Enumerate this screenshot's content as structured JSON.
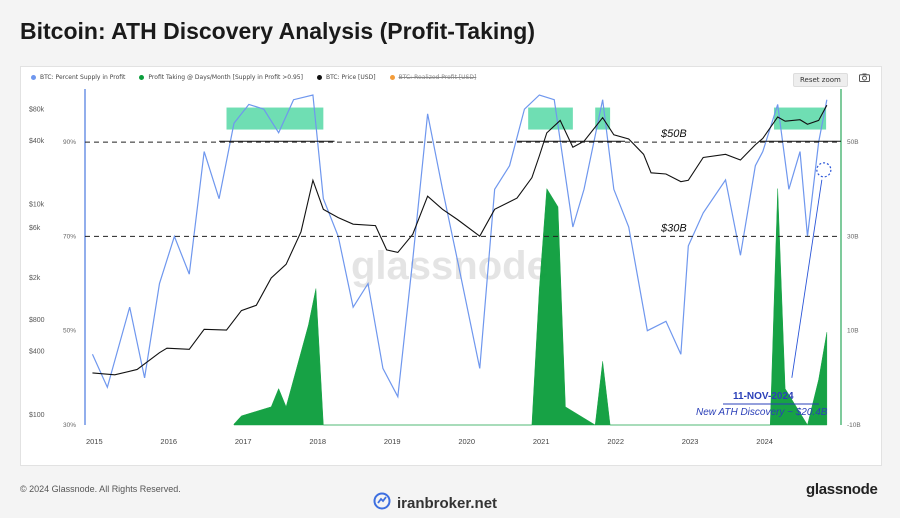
{
  "title": "Bitcoin: ATH Discovery Analysis (Profit-Taking)",
  "legend": [
    {
      "label": "BTC: Percent Supply in Profit",
      "color": "#6f97ee",
      "struck": false
    },
    {
      "label": "Profit Taking @ Days/Month [Supply in Profit >0.95]",
      "color": "#0b9e3c",
      "struck": false
    },
    {
      "label": "BTC: Price [USD]",
      "color": "#111111",
      "struck": false
    },
    {
      "label": "BTC: Realized Profit [USD]",
      "color": "#f39c3a",
      "struck": true
    }
  ],
  "toolbar": {
    "reset_zoom": "Reset zoom",
    "camera_icon": "camera-icon"
  },
  "footer": {
    "copyright": "© 2024 Glassnode. All Rights Reserved.",
    "brand": "glassnode",
    "watermark_brand": "iranbroker.net"
  },
  "chart_data": {
    "type": "line",
    "x_ticks": [
      "2015",
      "2016",
      "2017",
      "2018",
      "2019",
      "2020",
      "2021",
      "2022",
      "2023",
      "2024"
    ],
    "left_price_ticks": [
      "$80k",
      "$40k",
      "$10k",
      "$6k",
      "$2k",
      "$800",
      "$400",
      "$100"
    ],
    "left_percent_ticks": [
      "90%",
      "70%",
      "50%",
      "30%"
    ],
    "right_ticks": [
      "50B",
      "30B",
      "10B",
      "-10B"
    ],
    "watermark": "glassnode",
    "annotations": {
      "line_50b": "$50B",
      "line_30b": "$30B",
      "event_date": "11-NOV-2024",
      "event_text": "New ATH Discovery ~ $20.4B"
    },
    "price_usd": [
      [
        2015.0,
        250
      ],
      [
        2015.3,
        240
      ],
      [
        2015.6,
        270
      ],
      [
        2015.9,
        390
      ],
      [
        2016.0,
        430
      ],
      [
        2016.3,
        420
      ],
      [
        2016.5,
        650
      ],
      [
        2016.8,
        640
      ],
      [
        2017.0,
        980
      ],
      [
        2017.2,
        1100
      ],
      [
        2017.4,
        2000
      ],
      [
        2017.6,
        2700
      ],
      [
        2017.8,
        5500
      ],
      [
        2017.96,
        17000
      ],
      [
        2018.1,
        9000
      ],
      [
        2018.3,
        7500
      ],
      [
        2018.5,
        6500
      ],
      [
        2018.8,
        6300
      ],
      [
        2018.95,
        3700
      ],
      [
        2019.1,
        3500
      ],
      [
        2019.3,
        5200
      ],
      [
        2019.5,
        12000
      ],
      [
        2019.7,
        9000
      ],
      [
        2019.9,
        7200
      ],
      [
        2020.2,
        5000
      ],
      [
        2020.4,
        9000
      ],
      [
        2020.7,
        11500
      ],
      [
        2020.9,
        18000
      ],
      [
        2021.0,
        29000
      ],
      [
        2021.1,
        48000
      ],
      [
        2021.28,
        63000
      ],
      [
        2021.45,
        35000
      ],
      [
        2021.6,
        40000
      ],
      [
        2021.85,
        67000
      ],
      [
        2022.0,
        46000
      ],
      [
        2022.2,
        42000
      ],
      [
        2022.4,
        30000
      ],
      [
        2022.5,
        20000
      ],
      [
        2022.7,
        19500
      ],
      [
        2022.9,
        16500
      ],
      [
        2023.0,
        17000
      ],
      [
        2023.2,
        28000
      ],
      [
        2023.5,
        30000
      ],
      [
        2023.7,
        26500
      ],
      [
        2023.9,
        37000
      ],
      [
        2024.0,
        42500
      ],
      [
        2024.2,
        68000
      ],
      [
        2024.3,
        62000
      ],
      [
        2024.5,
        64000
      ],
      [
        2024.6,
        58000
      ],
      [
        2024.75,
        63000
      ],
      [
        2024.86,
        88000
      ]
    ],
    "percent_supply_in_profit": [
      [
        2015.0,
        45
      ],
      [
        2015.2,
        38
      ],
      [
        2015.5,
        55
      ],
      [
        2015.7,
        40
      ],
      [
        2015.9,
        60
      ],
      [
        2016.1,
        70
      ],
      [
        2016.3,
        62
      ],
      [
        2016.5,
        88
      ],
      [
        2016.7,
        78
      ],
      [
        2016.9,
        94
      ],
      [
        2017.1,
        98
      ],
      [
        2017.3,
        97
      ],
      [
        2017.5,
        92
      ],
      [
        2017.7,
        99
      ],
      [
        2017.96,
        100
      ],
      [
        2018.1,
        78
      ],
      [
        2018.3,
        70
      ],
      [
        2018.5,
        55
      ],
      [
        2018.7,
        60
      ],
      [
        2018.9,
        42
      ],
      [
        2019.1,
        36
      ],
      [
        2019.3,
        65
      ],
      [
        2019.5,
        96
      ],
      [
        2019.7,
        80
      ],
      [
        2019.9,
        65
      ],
      [
        2020.2,
        42
      ],
      [
        2020.4,
        80
      ],
      [
        2020.6,
        85
      ],
      [
        2020.8,
        97
      ],
      [
        2021.0,
        100
      ],
      [
        2021.2,
        99
      ],
      [
        2021.45,
        72
      ],
      [
        2021.6,
        80
      ],
      [
        2021.85,
        99
      ],
      [
        2022.0,
        80
      ],
      [
        2022.2,
        72
      ],
      [
        2022.45,
        50
      ],
      [
        2022.7,
        52
      ],
      [
        2022.9,
        45
      ],
      [
        2023.0,
        68
      ],
      [
        2023.2,
        75
      ],
      [
        2023.5,
        82
      ],
      [
        2023.7,
        66
      ],
      [
        2023.9,
        85
      ],
      [
        2024.0,
        88
      ],
      [
        2024.2,
        98
      ],
      [
        2024.35,
        80
      ],
      [
        2024.5,
        88
      ],
      [
        2024.6,
        70
      ],
      [
        2024.75,
        90
      ],
      [
        2024.86,
        99
      ]
    ],
    "profit_taking": [
      [
        2016.9,
        0.2
      ],
      [
        2017.0,
        2
      ],
      [
        2017.2,
        3
      ],
      [
        2017.4,
        4
      ],
      [
        2017.5,
        8
      ],
      [
        2017.6,
        4
      ],
      [
        2017.9,
        22
      ],
      [
        2018.0,
        30
      ],
      [
        2018.1,
        0
      ],
      [
        2020.9,
        0
      ],
      [
        2021.0,
        30
      ],
      [
        2021.1,
        52
      ],
      [
        2021.25,
        48
      ],
      [
        2021.35,
        4
      ],
      [
        2021.75,
        0
      ],
      [
        2021.85,
        14
      ],
      [
        2021.95,
        0
      ],
      [
        2024.1,
        0
      ],
      [
        2024.2,
        52
      ],
      [
        2024.3,
        8
      ],
      [
        2024.6,
        0
      ],
      [
        2024.75,
        10
      ],
      [
        2024.86,
        20.4
      ]
    ],
    "ath_bands": [
      [
        2016.8,
        2018.1
      ],
      [
        2020.85,
        2021.45
      ],
      [
        2021.75,
        2021.95
      ],
      [
        2024.15,
        2024.85
      ]
    ],
    "ath_levels_price": [
      {
        "x0": 2016.7,
        "x1": 2018.25,
        "price": 40000
      },
      {
        "x0": 2020.7,
        "x1": 2022.15,
        "price": 40000
      },
      {
        "x0": 2023.95,
        "x1": 2025.05,
        "price": 40000
      }
    ],
    "dashed_levels": [
      {
        "label": "$50B",
        "percent": 90
      },
      {
        "label": "$30B",
        "percent": 70
      }
    ]
  }
}
